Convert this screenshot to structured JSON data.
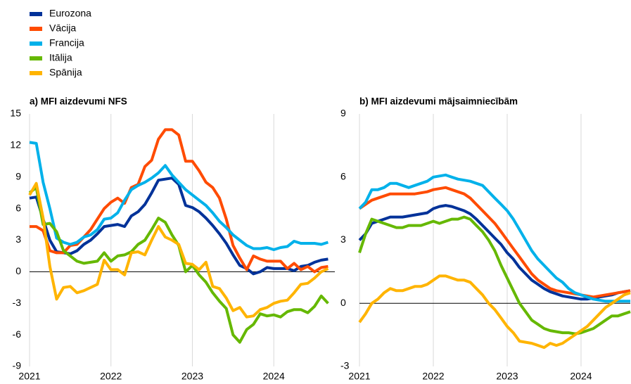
{
  "chart_data": [
    {
      "type": "line",
      "title": "a) MFI aizdevumi NFS",
      "x": [
        2021,
        2021.083,
        2021.167,
        2021.25,
        2021.333,
        2021.417,
        2021.5,
        2021.583,
        2021.667,
        2021.75,
        2021.833,
        2021.917,
        2022,
        2022.083,
        2022.167,
        2022.25,
        2022.333,
        2022.417,
        2022.5,
        2022.583,
        2022.667,
        2022.75,
        2022.833,
        2022.917,
        2023,
        2023.083,
        2023.167,
        2023.25,
        2023.333,
        2023.417,
        2023.5,
        2023.583,
        2023.667,
        2023.75,
        2023.833,
        2023.917,
        2024,
        2024.083,
        2024.167,
        2024.25,
        2024.333,
        2024.417,
        2024.5,
        2024.583,
        2024.667
      ],
      "xlim": [
        2021,
        2024.75
      ],
      "xticks": [
        2021,
        2022,
        2023,
        2024
      ],
      "ylim": [
        -9,
        15
      ],
      "yticks": [
        -9,
        -6,
        -3,
        0,
        3,
        6,
        9,
        12,
        15
      ],
      "series": [
        {
          "name": "Eurozona",
          "color": "#003299",
          "values": [
            7,
            7.1,
            5,
            3,
            1.9,
            1.8,
            1.7,
            2,
            2.6,
            3,
            3.6,
            4.3,
            4.4,
            4.5,
            4.3,
            5.3,
            5.7,
            6.4,
            7.5,
            8.7,
            8.8,
            8.9,
            8.3,
            6.3,
            6.1,
            5.7,
            5.1,
            4.4,
            3.6,
            2.7,
            1.6,
            0.6,
            0.3,
            -0.2,
            0,
            0.4,
            0.3,
            0.3,
            0.3,
            0.1,
            0.5,
            0.6,
            0.9,
            1.1,
            1.2
          ]
        },
        {
          "name": "Vācija",
          "color": "#ff4b00",
          "values": [
            4.3,
            4.3,
            3.9,
            2,
            1.8,
            1.8,
            2.5,
            2.6,
            3.3,
            4,
            5,
            6,
            6.6,
            7,
            6.5,
            8,
            8.3,
            10,
            10.6,
            12.6,
            13.5,
            13.5,
            13,
            10.5,
            10.5,
            9.6,
            8.5,
            8,
            7,
            5,
            2.5,
            1.3,
            0.2,
            1.5,
            1.2,
            1,
            1,
            1,
            0.3,
            0.8,
            0.2,
            0.5,
            0,
            0.4,
            0.5
          ]
        },
        {
          "name": "Francija",
          "color": "#00b1ea",
          "values": [
            12.3,
            12.2,
            8.5,
            6,
            3.2,
            2.8,
            2.6,
            2.8,
            3.3,
            3.5,
            4,
            5,
            5.1,
            5.6,
            6.8,
            7.8,
            8.2,
            8.5,
            8.9,
            9.4,
            10.1,
            9.2,
            8.5,
            7.8,
            7.3,
            6.8,
            6.3,
            5.6,
            4.8,
            4.2,
            3.5,
            3,
            2.5,
            2.2,
            2.2,
            2.3,
            2.1,
            2.3,
            2.4,
            2.9,
            2.7,
            2.7,
            2.7,
            2.6,
            2.8
          ]
        },
        {
          "name": "Itālija",
          "color": "#65b800",
          "values": [
            7.5,
            8,
            4.5,
            4.6,
            3.8,
            2,
            1.5,
            1,
            0.8,
            0.9,
            1,
            1.8,
            1,
            1.5,
            1.6,
            1.9,
            2.6,
            3,
            4,
            5.1,
            4.7,
            3.5,
            2.5,
            0,
            0.6,
            -0.3,
            -1,
            -2,
            -2.8,
            -3.5,
            -6,
            -6.7,
            -5.5,
            -5,
            -4,
            -4.2,
            -4.1,
            -4.3,
            -3.8,
            -3.6,
            -3.6,
            -3.9,
            -3.3,
            -2.3,
            -3
          ]
        },
        {
          "name": "Spānija",
          "color": "#ffb400",
          "values": [
            7.3,
            8.4,
            5.1,
            0.5,
            -2.6,
            -1.5,
            -1.4,
            -2,
            -1.8,
            -1.5,
            -1.2,
            1.1,
            0.2,
            0.2,
            -0.3,
            1.8,
            1.9,
            1.6,
            3,
            4.3,
            3.3,
            3,
            2.6,
            0.8,
            0.7,
            0.2,
            0.9,
            -1.4,
            -1.6,
            -2.5,
            -3.7,
            -3.4,
            -4.3,
            -4.2,
            -3.6,
            -3.4,
            -3,
            -2.8,
            -2.7,
            -2,
            -1.2,
            -1.1,
            -0.6,
            0,
            0.3
          ]
        }
      ]
    },
    {
      "type": "line",
      "title": "b) MFI aizdevumi mājsaimniecībām",
      "x": [
        2021,
        2021.083,
        2021.167,
        2021.25,
        2021.333,
        2021.417,
        2021.5,
        2021.583,
        2021.667,
        2021.75,
        2021.833,
        2021.917,
        2022,
        2022.083,
        2022.167,
        2022.25,
        2022.333,
        2022.417,
        2022.5,
        2022.583,
        2022.667,
        2022.75,
        2022.833,
        2022.917,
        2023,
        2023.083,
        2023.167,
        2023.25,
        2023.333,
        2023.417,
        2023.5,
        2023.583,
        2023.667,
        2023.75,
        2023.833,
        2023.917,
        2024,
        2024.083,
        2024.167,
        2024.25,
        2024.333,
        2024.417,
        2024.5,
        2024.583,
        2024.667
      ],
      "xlim": [
        2021,
        2024.667
      ],
      "xticks": [
        2021,
        2022,
        2023,
        2024
      ],
      "ylim": [
        -3,
        9
      ],
      "yticks": [
        -3,
        0,
        3,
        6,
        9
      ],
      "series": [
        {
          "color": "#003299",
          "values": [
            3,
            3.3,
            3.8,
            3.9,
            4,
            4.1,
            4.1,
            4.1,
            4.15,
            4.2,
            4.25,
            4.3,
            4.5,
            4.6,
            4.65,
            4.6,
            4.5,
            4.4,
            4.25,
            4,
            3.7,
            3.4,
            3.1,
            2.8,
            2.4,
            2.1,
            1.7,
            1.4,
            1.1,
            0.9,
            0.7,
            0.55,
            0.45,
            0.35,
            0.3,
            0.25,
            0.2,
            0.2,
            0.25,
            0.3,
            0.35,
            0.4,
            0.5,
            0.55,
            0.6
          ]
        },
        {
          "color": "#ff4b00",
          "values": [
            4.5,
            4.7,
            4.9,
            5,
            5.1,
            5.2,
            5.2,
            5.2,
            5.2,
            5.2,
            5.25,
            5.3,
            5.4,
            5.45,
            5.5,
            5.4,
            5.3,
            5.2,
            5,
            4.7,
            4.4,
            4.1,
            3.8,
            3.4,
            3,
            2.6,
            2.2,
            1.8,
            1.4,
            1.1,
            0.9,
            0.7,
            0.6,
            0.55,
            0.5,
            0.45,
            0.4,
            0.35,
            0.3,
            0.35,
            0.4,
            0.45,
            0.5,
            0.55,
            0.6
          ]
        },
        {
          "color": "#00b1ea",
          "values": [
            4.5,
            4.8,
            5.4,
            5.4,
            5.5,
            5.7,
            5.7,
            5.6,
            5.5,
            5.6,
            5.7,
            5.8,
            6,
            6.05,
            6.1,
            6,
            5.9,
            5.85,
            5.8,
            5.7,
            5.6,
            5.3,
            5,
            4.7,
            4.4,
            4,
            3.5,
            3,
            2.5,
            2.1,
            1.8,
            1.5,
            1.2,
            1,
            0.7,
            0.5,
            0.4,
            0.3,
            0.2,
            0.15,
            0.1,
            0.1,
            0.1,
            0.1,
            0.1
          ]
        },
        {
          "color": "#65b800",
          "values": [
            2.4,
            3.3,
            4,
            3.9,
            3.8,
            3.7,
            3.6,
            3.6,
            3.7,
            3.7,
            3.7,
            3.8,
            3.9,
            3.8,
            3.9,
            4,
            4,
            4.1,
            4,
            3.7,
            3.4,
            3,
            2.5,
            1.8,
            1.2,
            0.6,
            0,
            -0.4,
            -0.8,
            -1,
            -1.2,
            -1.3,
            -1.35,
            -1.4,
            -1.4,
            -1.45,
            -1.4,
            -1.3,
            -1.2,
            -1,
            -0.8,
            -0.6,
            -0.6,
            -0.5,
            -0.4
          ]
        },
        {
          "color": "#ffb400",
          "values": [
            -0.9,
            -0.5,
            0,
            0.2,
            0.5,
            0.7,
            0.6,
            0.6,
            0.7,
            0.8,
            0.8,
            0.9,
            1.1,
            1.3,
            1.3,
            1.2,
            1.1,
            1.1,
            1,
            0.7,
            0.4,
            0,
            -0.3,
            -0.7,
            -1.1,
            -1.4,
            -1.8,
            -1.85,
            -1.9,
            -2,
            -2.1,
            -1.9,
            -2,
            -1.9,
            -1.7,
            -1.5,
            -1.3,
            -1.1,
            -0.8,
            -0.5,
            -0.2,
            0,
            0.2,
            0.4,
            0.5
          ]
        }
      ]
    }
  ]
}
